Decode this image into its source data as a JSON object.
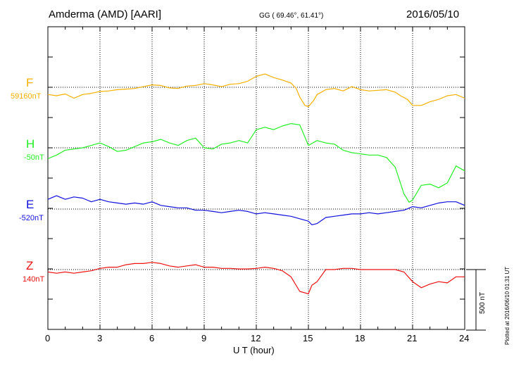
{
  "header": {
    "station": "Amderma (AMD)  [AARI]",
    "coords": "GG ( 69.46°,  61.41°)",
    "date": "2016/05/10"
  },
  "footer_note": "Plotted at 2016/06/10 01:31  UT",
  "scale_label": "500 nT",
  "chart_data": {
    "type": "line",
    "xlabel": "U T (hour)",
    "xlim": [
      0,
      24
    ],
    "xticks": [
      "0",
      "3",
      "6",
      "9",
      "12",
      "15",
      "18",
      "21",
      "24"
    ],
    "scale_bar_nT": 500,
    "grid": true,
    "series": [
      {
        "name": "F",
        "color": "#f5b000",
        "baseline_label": "59160nT",
        "x": [
          0,
          0.5,
          1,
          1.5,
          2,
          2.5,
          3,
          3.5,
          4,
          4.5,
          5,
          5.5,
          6,
          6.5,
          7,
          7.5,
          8,
          8.5,
          9,
          9.5,
          10,
          10.5,
          11,
          11.5,
          12,
          12.5,
          13,
          13.5,
          14,
          14.3,
          14.5,
          14.8,
          15,
          15.3,
          15.5,
          16,
          16.5,
          17,
          17.5,
          18,
          18.5,
          19,
          19.5,
          20,
          20.3,
          20.7,
          21,
          21.5,
          22,
          22.5,
          23,
          23.5,
          24
        ],
        "y": [
          -60,
          -70,
          -55,
          -90,
          -60,
          -50,
          -35,
          -30,
          -20,
          -15,
          -10,
          5,
          20,
          15,
          -5,
          -10,
          10,
          15,
          30,
          20,
          5,
          25,
          30,
          50,
          90,
          110,
          80,
          60,
          35,
          -10,
          -80,
          -150,
          -160,
          -110,
          -60,
          -20,
          -10,
          -30,
          5,
          -20,
          -30,
          -25,
          -20,
          -40,
          -70,
          -100,
          -150,
          -150,
          -120,
          -100,
          -70,
          -60,
          -90
        ]
      },
      {
        "name": "H",
        "color": "#22ee22",
        "baseline_label": "-50nT",
        "x": [
          0,
          0.5,
          1,
          1.5,
          2,
          2.5,
          3,
          3.5,
          4,
          4.5,
          5,
          5.5,
          6,
          6.5,
          7,
          7.5,
          8,
          8.5,
          9,
          9.5,
          10,
          10.5,
          11,
          11.5,
          12,
          12.5,
          13,
          13.5,
          14,
          14.5,
          15,
          15.5,
          16,
          16.5,
          17,
          17.5,
          18,
          18.5,
          19,
          19.5,
          20,
          20.5,
          20.8,
          21,
          21.5,
          22,
          22.5,
          23,
          23.5,
          24
        ],
        "y": [
          -90,
          -60,
          -20,
          -10,
          0,
          20,
          40,
          10,
          -30,
          -20,
          10,
          40,
          50,
          70,
          40,
          20,
          60,
          80,
          0,
          -10,
          30,
          40,
          60,
          40,
          150,
          170,
          150,
          180,
          200,
          190,
          20,
          60,
          40,
          30,
          -20,
          -40,
          -50,
          -60,
          -60,
          -80,
          -160,
          -380,
          -450,
          -430,
          -310,
          -300,
          -330,
          -290,
          -150,
          -190
        ]
      },
      {
        "name": "E",
        "color": "#1010dd",
        "baseline_label": "-520nT",
        "x": [
          0,
          0.5,
          1,
          1.5,
          2,
          2.5,
          3,
          3.5,
          4,
          4.5,
          5,
          5.5,
          6,
          6.5,
          7,
          7.5,
          8,
          8.5,
          9,
          9.5,
          10,
          10.5,
          11,
          11.5,
          12,
          12.5,
          13,
          13.5,
          14,
          14.5,
          15,
          15.2,
          15.5,
          16,
          16.5,
          17,
          17.5,
          18,
          18.5,
          19,
          19.5,
          20,
          20.5,
          21,
          21.5,
          22,
          22.5,
          23,
          23.5,
          24
        ],
        "y": [
          80,
          110,
          80,
          100,
          90,
          60,
          80,
          60,
          50,
          40,
          50,
          40,
          60,
          30,
          20,
          10,
          10,
          -10,
          -10,
          -20,
          -30,
          -20,
          -10,
          -20,
          -40,
          -30,
          -40,
          -50,
          -60,
          -80,
          -100,
          -130,
          -120,
          -70,
          -60,
          -50,
          -40,
          -40,
          -30,
          -40,
          -30,
          -20,
          -10,
          20,
          10,
          30,
          50,
          60,
          60,
          30
        ]
      },
      {
        "name": "Z",
        "color": "#ee1111",
        "baseline_label": "140nT",
        "x": [
          0,
          0.5,
          1,
          1.5,
          2,
          2.5,
          3,
          3.5,
          4,
          4.5,
          5,
          5.5,
          6,
          6.5,
          7,
          7.5,
          8,
          8.5,
          9,
          9.5,
          10,
          10.5,
          11,
          11.5,
          12,
          12.5,
          13,
          13.5,
          14,
          14.5,
          15,
          15.2,
          15.5,
          16,
          16.5,
          17,
          17.5,
          18,
          18.5,
          19,
          19.5,
          20,
          20.5,
          21,
          21.5,
          22,
          22.5,
          23,
          23.5,
          24
        ],
        "y": [
          -20,
          -30,
          -20,
          -30,
          -20,
          -10,
          10,
          20,
          20,
          40,
          50,
          50,
          60,
          50,
          30,
          20,
          30,
          40,
          20,
          20,
          10,
          10,
          5,
          5,
          10,
          20,
          10,
          -10,
          -60,
          -180,
          -200,
          -130,
          -100,
          0,
          0,
          10,
          10,
          0,
          0,
          0,
          0,
          0,
          -20,
          -100,
          -150,
          -120,
          -100,
          -110,
          -60,
          -60
        ]
      }
    ]
  }
}
